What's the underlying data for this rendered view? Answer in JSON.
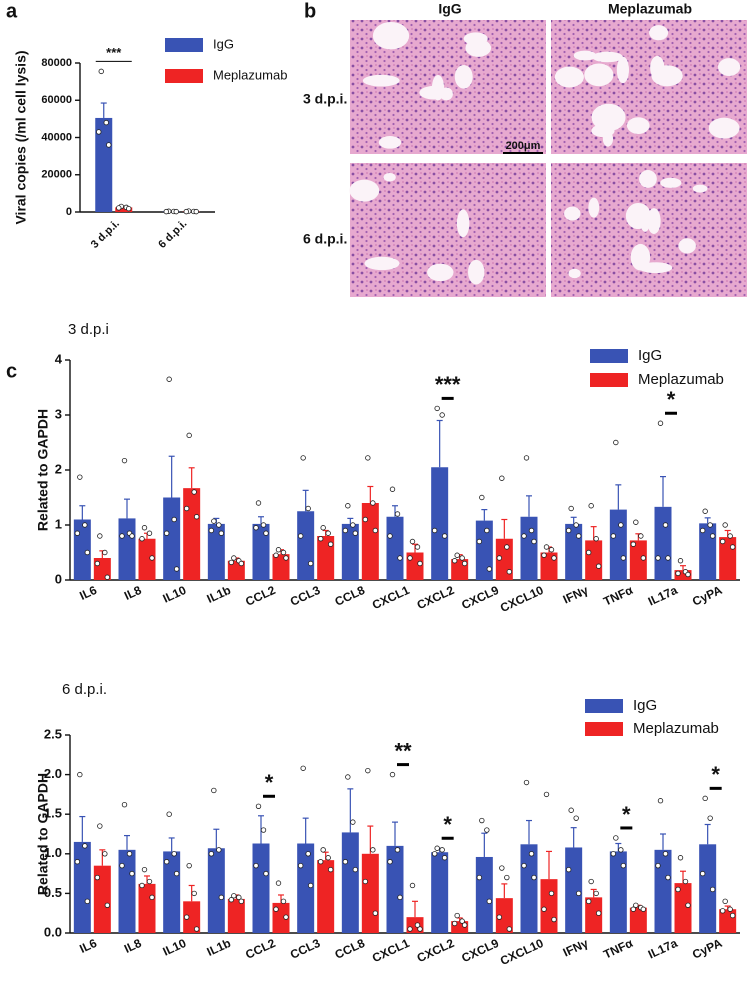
{
  "panel_labels": [
    "a",
    "b",
    "c"
  ],
  "panel_b": {
    "columns": [
      "IgG",
      "Meplazumab"
    ],
    "rows": [
      "3 d.p.i.",
      "6 d.p.i."
    ],
    "scale_bar": "200μm"
  },
  "chart_data": [
    {
      "type": "bar",
      "y_label": "Viral copies (/ml cell lysis)",
      "categories": [
        "3 d.p.i.",
        "6 d.p.i."
      ],
      "series": [
        {
          "name": "IgG",
          "color": "#3953b4",
          "values": [
            50500,
            300
          ],
          "errors": [
            8000,
            100
          ],
          "points": [
            [
              75500,
              48000,
              43000,
              36000
            ],
            [
              400,
              300,
              200,
              200
            ]
          ]
        },
        {
          "name": "Meplazumab",
          "color": "#ee2424",
          "values": [
            2500,
            300
          ],
          "errors": [
            500,
            100
          ],
          "points": [
            [
              3000,
              2500,
              2200,
              1800
            ],
            [
              500,
              300,
              200,
              200
            ]
          ]
        }
      ],
      "significance": [
        "***",
        null
      ],
      "ylim": [
        0,
        80000
      ],
      "yticks": [
        0,
        20000,
        40000,
        60000,
        80000
      ]
    },
    {
      "type": "bar",
      "title": "3 d.p.i",
      "y_label": "Related to GAPDH",
      "categories": [
        "IL6",
        "IL8",
        "IL10",
        "IL1b",
        "CCL2",
        "CCL3",
        "CCL8",
        "CXCL1",
        "CXCL2",
        "CXCL9",
        "CXCL10",
        "IFNγ",
        "TNFα",
        "IL17a",
        "CyPA"
      ],
      "series": [
        {
          "name": "IgG",
          "color": "#3953b4",
          "values": [
            1.1,
            1.12,
            1.5,
            1.02,
            1.02,
            1.25,
            1.02,
            1.15,
            2.05,
            1.08,
            1.15,
            1.02,
            1.28,
            1.33,
            1.03
          ],
          "errors": [
            0.25,
            0.35,
            0.75,
            0.1,
            0.13,
            0.38,
            0.1,
            0.2,
            0.85,
            0.2,
            0.38,
            0.12,
            0.45,
            0.55,
            0.1
          ],
          "points": [
            [
              1.87,
              1.0,
              0.85,
              0.5
            ],
            [
              2.17,
              0.85,
              0.8,
              0.8
            ],
            [
              3.65,
              1.1,
              0.85,
              0.2
            ],
            [
              1.07,
              1.0,
              0.9,
              0.85
            ],
            [
              1.4,
              1.0,
              0.95,
              0.85
            ],
            [
              2.22,
              1.3,
              0.8,
              0.3
            ],
            [
              1.35,
              1.0,
              0.9,
              0.85
            ],
            [
              1.65,
              1.2,
              0.8,
              0.4
            ],
            [
              3.12,
              3.0,
              0.9,
              0.8
            ],
            [
              1.5,
              0.9,
              0.7,
              0.2
            ],
            [
              2.22,
              0.9,
              0.8,
              0.7
            ],
            [
              1.3,
              1.0,
              0.9,
              0.8
            ],
            [
              2.5,
              1.0,
              0.8,
              0.4
            ],
            [
              2.85,
              1.0,
              0.4,
              0.4
            ],
            [
              1.25,
              1.0,
              0.9,
              0.8
            ]
          ]
        },
        {
          "name": "Meplazumab",
          "color": "#ee2424",
          "values": [
            0.4,
            0.75,
            1.67,
            0.35,
            0.47,
            0.8,
            1.4,
            0.5,
            0.38,
            0.75,
            0.5,
            0.72,
            0.72,
            0.18,
            0.78
          ],
          "errors": [
            0.13,
            0.1,
            0.37,
            0.05,
            0.08,
            0.1,
            0.3,
            0.15,
            0.08,
            0.35,
            0.1,
            0.25,
            0.12,
            0.08,
            0.12
          ],
          "points": [
            [
              0.8,
              0.5,
              0.3,
              0.05
            ],
            [
              0.95,
              0.85,
              0.75,
              0.4
            ],
            [
              2.63,
              1.6,
              1.3,
              1.15
            ],
            [
              0.4,
              0.35,
              0.32,
              0.3
            ],
            [
              0.55,
              0.5,
              0.45,
              0.4
            ],
            [
              0.95,
              0.85,
              0.75,
              0.65
            ],
            [
              2.22,
              1.4,
              1.1,
              0.9
            ],
            [
              0.7,
              0.6,
              0.4,
              0.3
            ],
            [
              0.45,
              0.4,
              0.35,
              0.3
            ],
            [
              1.85,
              0.6,
              0.4,
              0.15
            ],
            [
              0.6,
              0.55,
              0.45,
              0.4
            ],
            [
              1.35,
              0.75,
              0.5,
              0.25
            ],
            [
              1.05,
              0.8,
              0.65,
              0.4
            ],
            [
              0.35,
              0.15,
              0.12,
              0.1
            ],
            [
              1.0,
              0.8,
              0.7,
              0.6
            ]
          ]
        }
      ],
      "significance": [
        null,
        null,
        null,
        null,
        null,
        null,
        null,
        null,
        "***",
        null,
        null,
        null,
        null,
        "*",
        null
      ],
      "ylim": [
        0,
        4
      ],
      "yticks": [
        0,
        1,
        2,
        3,
        4
      ]
    },
    {
      "type": "bar",
      "title": "6 d.p.i.",
      "y_label": "Related to GAPDH",
      "categories": [
        "IL6",
        "IL8",
        "IL10",
        "IL1b",
        "CCL2",
        "CCL3",
        "CCL8",
        "CXCL1",
        "CXCL2",
        "CXCL9",
        "CXCL10",
        "IFNγ",
        "TNFα",
        "IL17a",
        "CyPA"
      ],
      "series": [
        {
          "name": "IgG",
          "color": "#3953b4",
          "values": [
            1.15,
            1.05,
            1.03,
            1.07,
            1.13,
            1.13,
            1.27,
            1.1,
            1.02,
            0.96,
            1.12,
            1.08,
            1.03,
            1.05,
            1.12
          ],
          "errors": [
            0.32,
            0.18,
            0.17,
            0.24,
            0.35,
            0.32,
            0.55,
            0.3,
            0.05,
            0.3,
            0.3,
            0.25,
            0.1,
            0.2,
            0.25
          ],
          "points": [
            [
              2.0,
              1.1,
              0.9,
              0.4
            ],
            [
              1.62,
              1.0,
              0.85,
              0.75
            ],
            [
              1.5,
              1.0,
              0.9,
              0.75
            ],
            [
              1.8,
              1.05,
              1.0,
              0.45
            ],
            [
              1.6,
              1.3,
              0.85,
              0.75
            ],
            [
              2.08,
              1.0,
              0.85,
              0.6
            ],
            [
              1.97,
              1.4,
              0.9,
              0.8
            ],
            [
              2.0,
              1.05,
              0.9,
              0.45
            ],
            [
              1.07,
              1.05,
              1.0,
              0.95
            ],
            [
              1.42,
              1.3,
              0.7,
              0.4
            ],
            [
              1.9,
              1.0,
              0.85,
              0.7
            ],
            [
              1.55,
              1.45,
              0.8,
              0.5
            ],
            [
              1.2,
              1.05,
              1.0,
              0.85
            ],
            [
              1.67,
              1.0,
              0.85,
              0.7
            ],
            [
              1.7,
              1.45,
              0.75,
              0.55
            ]
          ]
        },
        {
          "name": "Meplazumab",
          "color": "#ee2424",
          "values": [
            0.85,
            0.62,
            0.4,
            0.43,
            0.38,
            0.92,
            1.0,
            0.2,
            0.15,
            0.44,
            0.68,
            0.45,
            0.32,
            0.63,
            0.3
          ],
          "errors": [
            0.2,
            0.1,
            0.2,
            0.05,
            0.1,
            0.1,
            0.35,
            0.2,
            0.04,
            0.18,
            0.35,
            0.1,
            0.03,
            0.15,
            0.04
          ],
          "points": [
            [
              1.35,
              1.0,
              0.7,
              0.35
            ],
            [
              0.8,
              0.65,
              0.6,
              0.45
            ],
            [
              0.85,
              0.5,
              0.2,
              0.05
            ],
            [
              0.47,
              0.45,
              0.42,
              0.4
            ],
            [
              0.63,
              0.4,
              0.3,
              0.2
            ],
            [
              1.05,
              0.95,
              0.9,
              0.8
            ],
            [
              2.05,
              1.05,
              0.65,
              0.25
            ],
            [
              0.6,
              0.1,
              0.05,
              0.05
            ],
            [
              0.22,
              0.15,
              0.12,
              0.1
            ],
            [
              0.82,
              0.7,
              0.2,
              0.05
            ],
            [
              1.75,
              0.5,
              0.3,
              0.17
            ],
            [
              0.65,
              0.5,
              0.4,
              0.25
            ],
            [
              0.35,
              0.32,
              0.3,
              0.3
            ],
            [
              0.95,
              0.65,
              0.55,
              0.35
            ],
            [
              0.4,
              0.3,
              0.28,
              0.22
            ]
          ]
        }
      ],
      "significance": [
        null,
        null,
        null,
        null,
        "*",
        null,
        null,
        "**",
        "*",
        null,
        null,
        null,
        "*",
        null,
        "*"
      ],
      "ylim": [
        0,
        2.5
      ],
      "yticks": [
        {
          "value": 0,
          "label": "0.0"
        },
        0.5,
        {
          "value": 1,
          "label": "1.0"
        },
        1.5,
        {
          "value": 2,
          "label": "2.0"
        },
        2.5
      ]
    }
  ]
}
